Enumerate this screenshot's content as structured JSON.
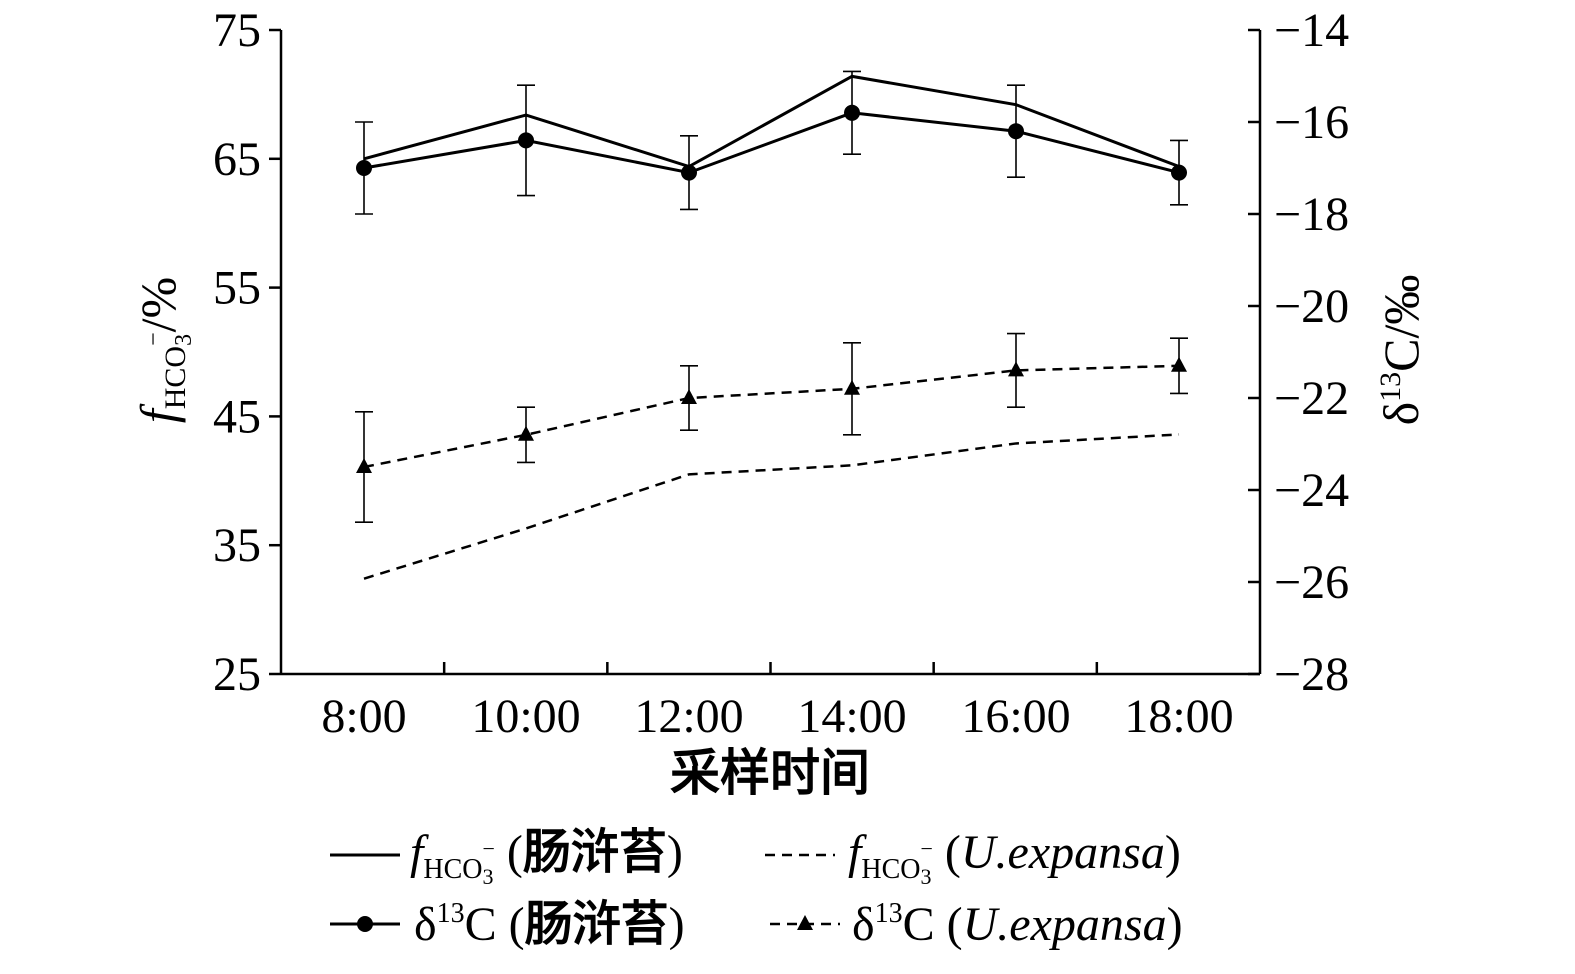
{
  "chart_data": {
    "type": "line",
    "categories": [
      "8:00",
      "10:00",
      "12:00",
      "14:00",
      "16:00",
      "18:00"
    ],
    "xlabel": "采样时间",
    "ylabel_left": {
      "main": "f",
      "sub": "HCO",
      "sub2": "3",
      "sup": "−",
      "unit": "/%"
    },
    "ylabel_right": {
      "delta": "δ",
      "sup": "13",
      "rest": "C/‰"
    },
    "ylim_left": [
      25,
      75
    ],
    "yticks_left": [
      "25",
      "35",
      "45",
      "55",
      "65",
      "75"
    ],
    "ylim_right": [
      -28,
      -14
    ],
    "yticks_right": [
      "−28",
      "−26",
      "−24",
      "−22",
      "−20",
      "−18",
      "−16",
      "−14"
    ],
    "grid": false,
    "legend_placement": "bottom",
    "series": [
      {
        "name": "f_HCO3- (肠浒苔)",
        "axis": "left",
        "style": "solid",
        "marker": "none",
        "values": [
          65.0,
          68.4,
          64.4,
          71.4,
          69.2,
          64.4
        ]
      },
      {
        "name": "f_HCO3- (U.expansa)",
        "axis": "left",
        "style": "dashed",
        "marker": "none",
        "values": [
          32.4,
          36.3,
          40.5,
          41.2,
          42.9,
          43.6
        ]
      },
      {
        "name": "δ13C (肠浒苔)",
        "axis": "right",
        "style": "solid",
        "marker": "circle",
        "values": [
          -17.0,
          -16.4,
          -17.1,
          -15.8,
          -16.2,
          -17.1
        ],
        "err": [
          1.0,
          1.2,
          0.8,
          0.9,
          1.0,
          0.7
        ]
      },
      {
        "name": "δ13C (U.expansa)",
        "axis": "right",
        "style": "dashed",
        "marker": "triangle",
        "values": [
          -23.5,
          -22.8,
          -22.0,
          -21.8,
          -21.4,
          -21.3
        ],
        "err": [
          1.2,
          0.6,
          0.7,
          1.0,
          0.8,
          0.6
        ]
      }
    ],
    "legend": [
      {
        "main": "f",
        "sub": "HCO",
        "sub2": "3",
        "sup": "−",
        "paren_open": " (",
        "species": "肠浒苔",
        "paren_close": ")",
        "italic_species": false
      },
      {
        "main": "f",
        "sub": "HCO",
        "sub2": "3",
        "sup": "−",
        "paren_open": " (",
        "species": "U.expansa",
        "paren_close": ")",
        "italic_species": true
      },
      {
        "main": "δ",
        "sup": "13",
        "rest": "C",
        "paren_open": " (",
        "species": "肠浒苔",
        "paren_close": ")",
        "italic_species": false
      },
      {
        "main": "δ",
        "sup": "13",
        "rest": "C",
        "paren_open": " (",
        "species": "U.expansa",
        "paren_close": ")",
        "italic_species": true
      }
    ]
  }
}
